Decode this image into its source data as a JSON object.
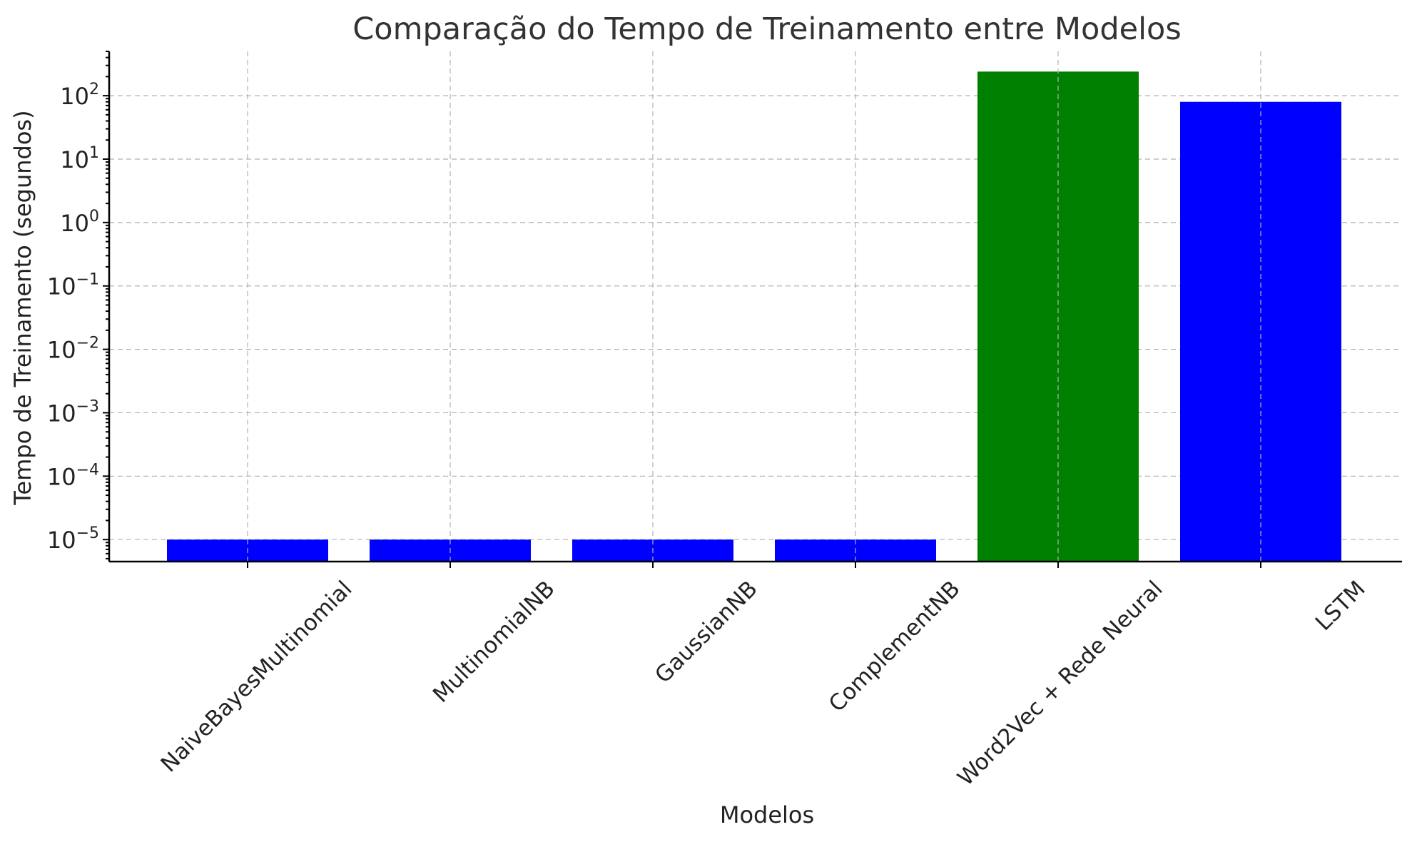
{
  "chart_data": {
    "type": "bar",
    "title": "Comparação do Tempo de Treinamento entre Modelos",
    "xlabel": "Modelos",
    "ylabel": "Tempo de Treinamento (segundos)",
    "yscale": "log",
    "ylim": [
      4.5e-06,
      500
    ],
    "grid": true,
    "categories": [
      "NaiveBayesMultinomial",
      "MultinomialNB",
      "GaussianNB",
      "ComplementNB",
      "Word2Vec + Rede Neural",
      "LSTM"
    ],
    "values": [
      1e-05,
      1e-05,
      1e-05,
      1e-05,
      240,
      80
    ],
    "colors": [
      "#0000ff",
      "#0000ff",
      "#0000ff",
      "#0000ff",
      "#008000",
      "#0000ff"
    ],
    "yticks": [
      {
        "value": 1e-05,
        "base": "10",
        "exp": "−5"
      },
      {
        "value": 0.0001,
        "base": "10",
        "exp": "−4"
      },
      {
        "value": 0.001,
        "base": "10",
        "exp": "−3"
      },
      {
        "value": 0.01,
        "base": "10",
        "exp": "−2"
      },
      {
        "value": 0.1,
        "base": "10",
        "exp": "−1"
      },
      {
        "value": 1,
        "base": "10",
        "exp": "0"
      },
      {
        "value": 10,
        "base": "10",
        "exp": "1"
      },
      {
        "value": 100,
        "base": "10",
        "exp": "2"
      }
    ]
  }
}
